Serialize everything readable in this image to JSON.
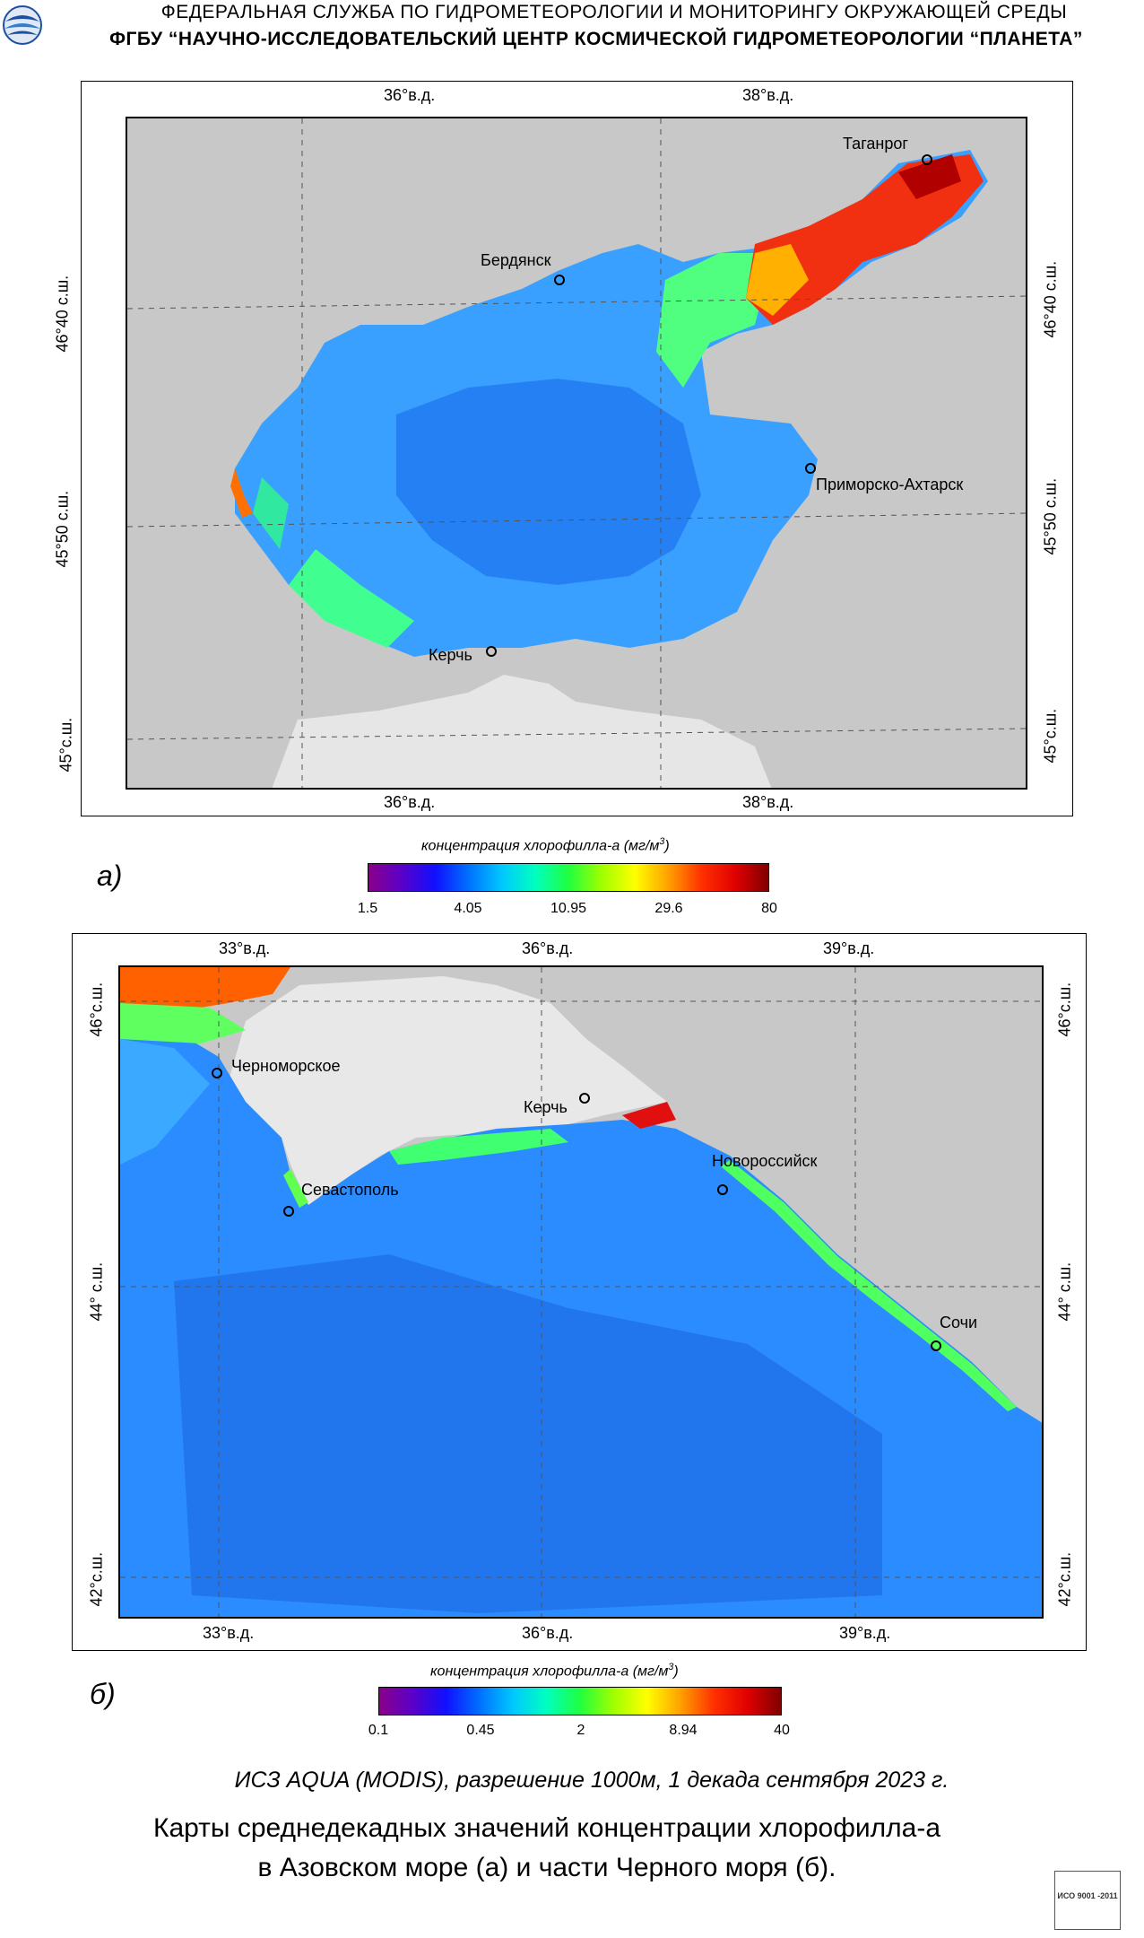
{
  "header": {
    "line1": "ФЕДЕРАЛЬНАЯ  СЛУЖБА  ПО ГИДРОМЕТЕОРОЛОГИИ И МОНИТОРИНГУ ОКРУЖАЮЩЕЙ СРЕДЫ",
    "line2": "ФГБУ “НАУЧНО-ИССЛЕДОВАТЕЛЬСКИЙ ЦЕНТР КОСМИЧЕСКОЙ ГИДРОМЕТЕОРОЛОГИИ “ПЛАНЕТА”",
    "logo_icon": "planeta-globe-icon"
  },
  "map_a": {
    "panel_letter": "а)",
    "lon_top": [
      "36°в.д.",
      "38°в.д."
    ],
    "lon_bottom": [
      "36°в.д.",
      "38°в.д."
    ],
    "lat_left": [
      "46°40 с.ш.",
      "45°50 с.ш.",
      "45°с.ш."
    ],
    "lat_right": [
      "46°40 с.ш.",
      "45°50 с.ш.",
      "45°с.ш."
    ],
    "cities": [
      "Таганрог",
      "Бердянск",
      "Приморско-Ахтарск",
      "Керчь"
    ],
    "colorbar": {
      "title": "концентрация хлорофилла-а  (мг/м",
      "title_sup": "3",
      "title_end": ")",
      "labels": [
        "1.5",
        "4.05",
        "10.95",
        "29.6",
        "80"
      ]
    }
  },
  "map_b": {
    "panel_letter": "б)",
    "lon_top": [
      "33°в.д.",
      "36°в.д.",
      "39°в.д."
    ],
    "lon_bottom": [
      "33°в.д.",
      "36°в.д.",
      "39°в.д."
    ],
    "lat_left": [
      "46°с.ш.",
      "44° с.ш.",
      "42°с.ш."
    ],
    "lat_right": [
      "46°с.ш.",
      "44° с.ш.",
      "42°с.ш."
    ],
    "cities": [
      "Черноморское",
      "Керчь",
      "Новороссийск",
      "Севастополь",
      "Сочи"
    ],
    "colorbar": {
      "title": "концентрация хлорофилла-а  (мг/м",
      "title_sup": "3",
      "title_end": ")",
      "labels": [
        "0.1",
        "0.45",
        "2",
        "8.94",
        "40"
      ]
    }
  },
  "footer": {
    "source": "ИСЗ AQUA (MODIS), разрешение 1000м, 1 декада сентября 2023 г.",
    "caption_line1": "Карты среднедекадных значений концентрации хлорофилла-а",
    "caption_line2": "в Азовском море (а) и части Черного моря (б).",
    "iso_text": "ИСО 9001 -2011"
  }
}
